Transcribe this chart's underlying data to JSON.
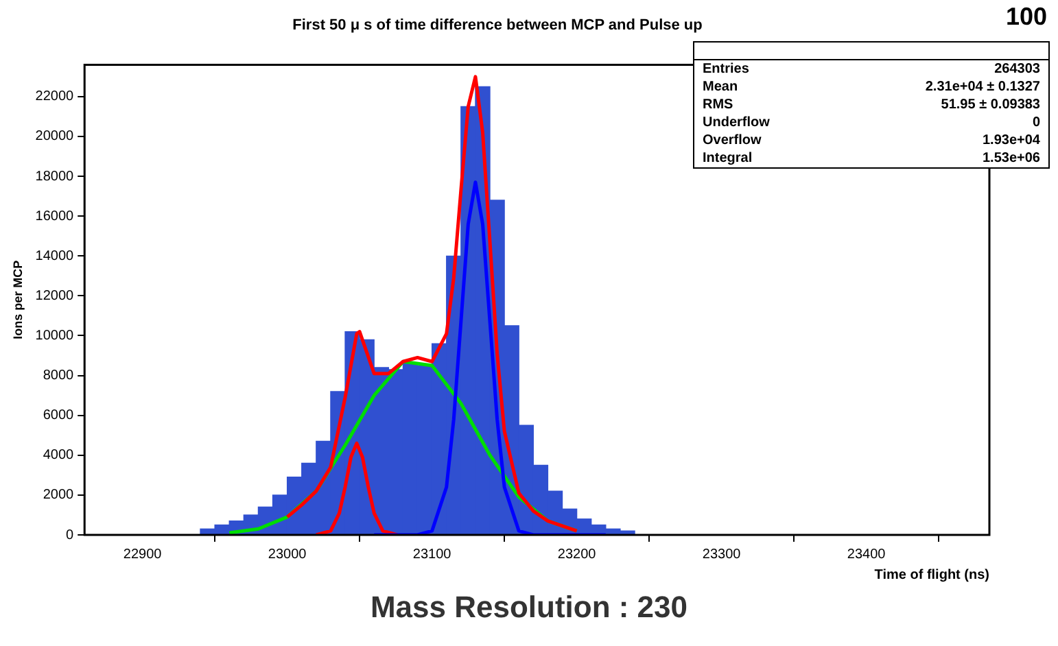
{
  "chart_data": {
    "type": "histogram",
    "title": "First 50 μ s of time difference between MCP and Pulse up",
    "xlabel": "Time of flight (ns)",
    "ylabel": "Ions per MCP",
    "bins": [
      22940,
      22950,
      22960,
      22970,
      22980,
      22990,
      23000,
      23010,
      23020,
      23030,
      23040,
      23050,
      23060,
      23070,
      23080,
      23090,
      23100,
      23110,
      23120,
      23130,
      23140,
      23150,
      23160,
      23170,
      23180,
      23190,
      23200,
      23210,
      23220,
      23230,
      23240
    ],
    "values": [
      300,
      500,
      700,
      1000,
      1400,
      2000,
      2900,
      3600,
      4700,
      7200,
      10200,
      9800,
      8400,
      8300,
      8600,
      8500,
      9600,
      14000,
      21500,
      22500,
      16800,
      10500,
      5500,
      3500,
      2200,
      1300,
      800,
      500,
      300,
      200
    ],
    "color": "#3050d0",
    "series": [
      {
        "type": "line",
        "color": "#00dd00",
        "x": [
          22960,
          22980,
          23000,
          23020,
          23040,
          23060,
          23080,
          23100,
          23120,
          23140,
          23160,
          23180,
          23200
        ],
        "values": [
          100,
          300,
          900,
          2200,
          4500,
          7000,
          8700,
          8500,
          6600,
          4000,
          1900,
          700,
          200
        ]
      },
      {
        "type": "line",
        "color": "#ff0000",
        "x": [
          23020,
          23030,
          23036,
          23040,
          23044,
          23048,
          23052,
          23056,
          23060,
          23066,
          23076
        ],
        "values": [
          0,
          200,
          1100,
          2400,
          3900,
          4600,
          3900,
          2400,
          1100,
          200,
          0
        ]
      },
      {
        "type": "line",
        "color": "#0000ff",
        "x": [
          23060,
          23090,
          23100,
          23110,
          23115,
          23120,
          23125,
          23130,
          23135,
          23140,
          23145,
          23150,
          23160,
          23170,
          23220
        ],
        "values": [
          0,
          0,
          200,
          2400,
          5800,
          10700,
          15600,
          17700,
          15600,
          10700,
          5800,
          2400,
          200,
          0,
          0
        ]
      },
      {
        "type": "line",
        "color": "#ff0000",
        "x": [
          23000,
          23010,
          23020,
          23030,
          23040,
          23048,
          23050,
          23060,
          23070,
          23080,
          23090,
          23100,
          23110,
          23115,
          23120,
          23125,
          23130,
          23135,
          23140,
          23145,
          23150,
          23160,
          23170,
          23180,
          23200
        ],
        "values": [
          900,
          1500,
          2200,
          3400,
          6900,
          10100,
          10200,
          8100,
          8100,
          8700,
          8900,
          8700,
          10100,
          12900,
          17300,
          21500,
          23000,
          20200,
          14700,
          9100,
          5200,
          2100,
          1200,
          700,
          200
        ]
      }
    ],
    "xlim": [
      22860,
      23485
    ],
    "xticks": [
      22900,
      23000,
      23100,
      23200,
      23300,
      23400
    ],
    "ylim": [
      0,
      23600
    ],
    "yticks": [
      0,
      2000,
      4000,
      6000,
      8000,
      10000,
      12000,
      14000,
      16000,
      18000,
      20000,
      22000
    ],
    "grid": false,
    "legend": false,
    "annotations": [
      "100",
      "Entries 264303",
      "Mean 2.31e+04 ± 0.1327",
      "RMS 51.95 ± 0.09383",
      "Underflow 0",
      "Overflow 1.93e+04",
      "Integral 1.53e+06",
      "Mass Resolution : 230"
    ]
  }
}
